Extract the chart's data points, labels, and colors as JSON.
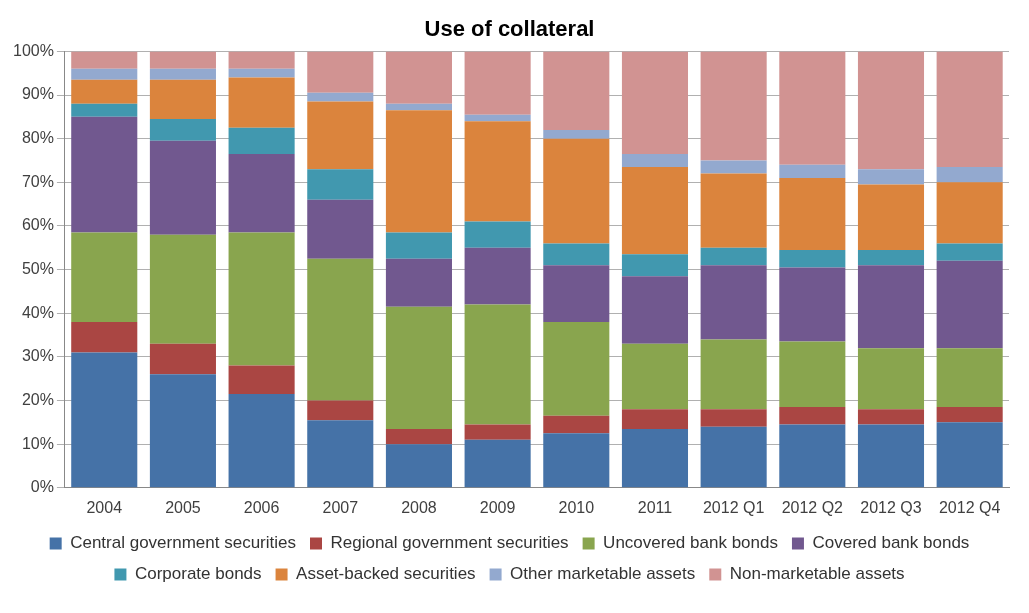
{
  "chart_data": {
    "type": "bar",
    "title": "Use of collateral",
    "stacked": true,
    "grid": "y",
    "legend": "bottom",
    "categories": [
      "2004",
      "2005",
      "2006",
      "2007",
      "2008",
      "2009",
      "2010",
      "2011",
      "2012 Q1",
      "2012 Q2",
      "2012 Q3",
      "2012 Q4"
    ],
    "ylim": [
      0,
      100
    ],
    "yticks": [
      {
        "value": 0,
        "label": "0%"
      },
      {
        "value": 10,
        "label": "10%"
      },
      {
        "value": 20,
        "label": "20%"
      },
      {
        "value": 30,
        "label": "30%"
      },
      {
        "value": 40,
        "label": "40%"
      },
      {
        "value": 50,
        "label": "50%"
      },
      {
        "value": 60,
        "label": "60%"
      },
      {
        "value": 70,
        "label": "70%"
      },
      {
        "value": 80,
        "label": "80%"
      },
      {
        "value": 90,
        "label": "90%"
      },
      {
        "value": 100,
        "label": "100%"
      }
    ],
    "series": [
      {
        "name": "Central government securities",
        "color": "#4572a7",
        "values": [
          31,
          26,
          21.5,
          15.5,
          10,
          11,
          12.5,
          13.5,
          14,
          14.5,
          14.5,
          15
        ]
      },
      {
        "name": "Regional government securities",
        "color": "#aa4643",
        "values": [
          7,
          7,
          6.5,
          4.5,
          3.5,
          3.5,
          4,
          4.5,
          4,
          4,
          3.5,
          3.5
        ]
      },
      {
        "name": "Uncovered bank bonds",
        "color": "#89a54e",
        "values": [
          20.5,
          25,
          30.5,
          32.5,
          28,
          27.5,
          21.5,
          15,
          16,
          15,
          14,
          13.5
        ]
      },
      {
        "name": "Covered bank bonds",
        "color": "#71588f",
        "values": [
          26.5,
          21.5,
          18,
          13.5,
          11,
          13,
          13,
          15.5,
          17,
          17,
          19,
          20
        ]
      },
      {
        "name": "Corporate bonds",
        "color": "#4198af",
        "values": [
          3,
          5,
          6,
          7,
          6,
          6,
          5,
          5,
          4,
          4,
          3.5,
          4
        ]
      },
      {
        "name": "Asset-backed securities",
        "color": "#db843d",
        "values": [
          5.5,
          9,
          11.5,
          15.5,
          28,
          23,
          24,
          20,
          17,
          16.5,
          15,
          14
        ]
      },
      {
        "name": "Other marketable assets",
        "color": "#93a9cf",
        "values": [
          2.5,
          2.5,
          2,
          2,
          1.5,
          1.5,
          2,
          3,
          3,
          3,
          3.5,
          3.5
        ]
      },
      {
        "name": "Non-marketable assets",
        "color": "#d19392",
        "values": [
          4,
          4,
          4,
          9.5,
          12,
          14.5,
          18,
          23.5,
          25,
          26,
          27,
          26.5
        ]
      }
    ]
  }
}
